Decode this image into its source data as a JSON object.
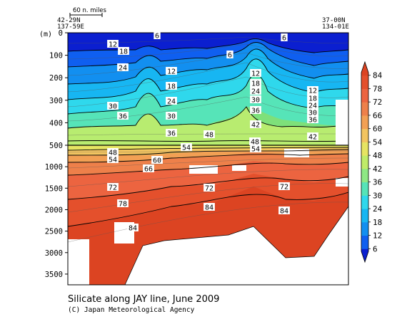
{
  "chart_data": {
    "type": "heatmap",
    "title": "Silicate along JAY line, June 2009",
    "credit": "(C) Japan Meteorological Agency",
    "scale_bar_label": "60 n. miles",
    "ylabel": "(m)",
    "start_station": {
      "lat": "42-29N",
      "lon": "137-59E"
    },
    "end_station": {
      "lat": "37-00N",
      "lon": "134-01E"
    },
    "upper_yticks": [
      "0",
      "100",
      "200",
      "300",
      "400",
      "500"
    ],
    "lower_yticks": [
      "1000",
      "1500",
      "2000",
      "2500",
      "3000",
      "3500"
    ],
    "upper_depth_range": [
      0,
      500
    ],
    "lower_depth_range": [
      500,
      3750
    ],
    "colorbar": {
      "levels": [
        6,
        12,
        18,
        24,
        30,
        36,
        42,
        48,
        54,
        60,
        66,
        72,
        78,
        84
      ],
      "labels": [
        "84",
        "78",
        "72",
        "66",
        "60",
        "54",
        "48",
        "42",
        "36",
        "30",
        "24",
        "18",
        "12",
        "6"
      ],
      "colors": [
        "#0b1fd0",
        "#0f5ff0",
        "#128ff0",
        "#17b6f2",
        "#2fd8ec",
        "#56e4b8",
        "#8ee884",
        "#c0ec68",
        "#e6e462",
        "#f2c460",
        "#f2a054",
        "#ee804a",
        "#ec6440",
        "#e4502c",
        "#dc4422"
      ]
    },
    "contour_labels": [
      "6",
      "12",
      "18",
      "24",
      "30",
      "36",
      "42",
      "48",
      "54",
      "60",
      "66",
      "72",
      "78",
      "84"
    ]
  }
}
